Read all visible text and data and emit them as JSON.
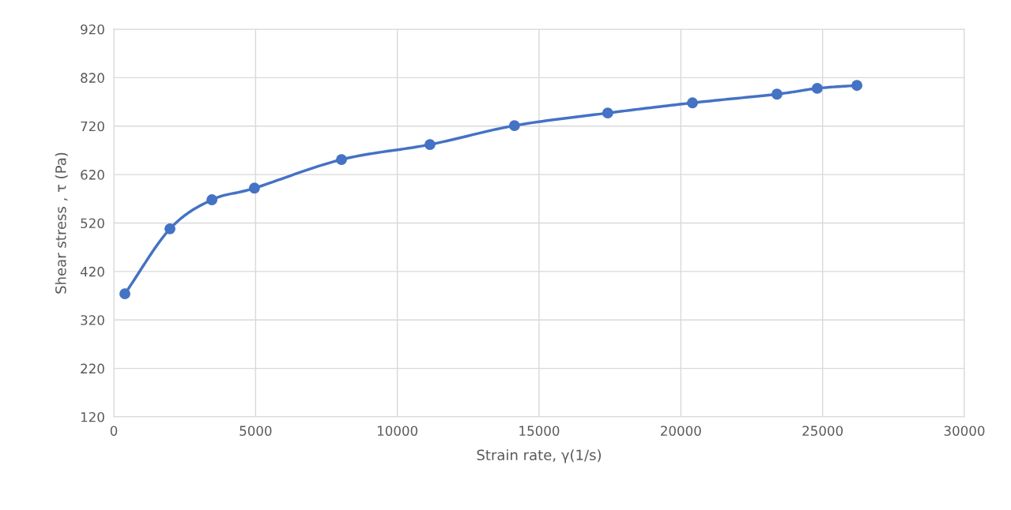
{
  "chart_data": {
    "type": "line",
    "xlabel": "Strain rate, γ(1/s)",
    "ylabel": "Shear stress , τ (Pa)",
    "series": [
      {
        "color": "#4472c4",
        "x": [
          390,
          1980,
          3460,
          4960,
          8030,
          11150,
          14130,
          17420,
          20410,
          23390,
          24810,
          26210
        ],
        "values": [
          374,
          508,
          568,
          592,
          651,
          682,
          721,
          747,
          768,
          786,
          798,
          804
        ]
      }
    ],
    "xlim": [
      0,
      30000
    ],
    "xticks": [
      0,
      5000,
      10000,
      15000,
      20000,
      25000,
      30000
    ],
    "ylim": [
      120,
      920
    ],
    "yticks": [
      120,
      220,
      320,
      420,
      520,
      620,
      720,
      820,
      920
    ],
    "grid": true,
    "marker": "circle",
    "line_style": "solid"
  }
}
